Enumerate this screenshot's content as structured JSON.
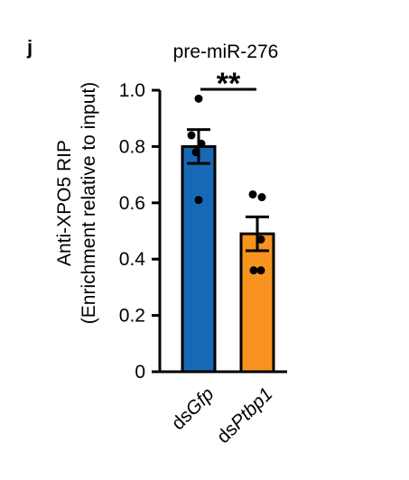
{
  "panel_label": "j",
  "chart_data": {
    "type": "bar",
    "title": "pre-miR-276",
    "ylabel_line1": "Anti-XPO5 RIP",
    "ylabel_line2": "(Enrichment relative to input)",
    "ylim": [
      0,
      1.0
    ],
    "yticks": [
      "0",
      "0.2",
      "0.4",
      "0.6",
      "0.8",
      "1.0"
    ],
    "categories": [
      {
        "prefix": "ds",
        "italic": "Gfp"
      },
      {
        "prefix": "ds",
        "italic": "Ptbp1"
      }
    ],
    "values": [
      0.8,
      0.49
    ],
    "errors": [
      0.06,
      0.06
    ],
    "colors": [
      "#1769b5",
      "#f7931e"
    ],
    "points": [
      [
        0.97,
        0.84,
        0.81,
        0.78,
        0.61
      ],
      [
        0.63,
        0.62,
        0.47,
        0.36,
        0.36
      ]
    ],
    "significance": "**"
  }
}
